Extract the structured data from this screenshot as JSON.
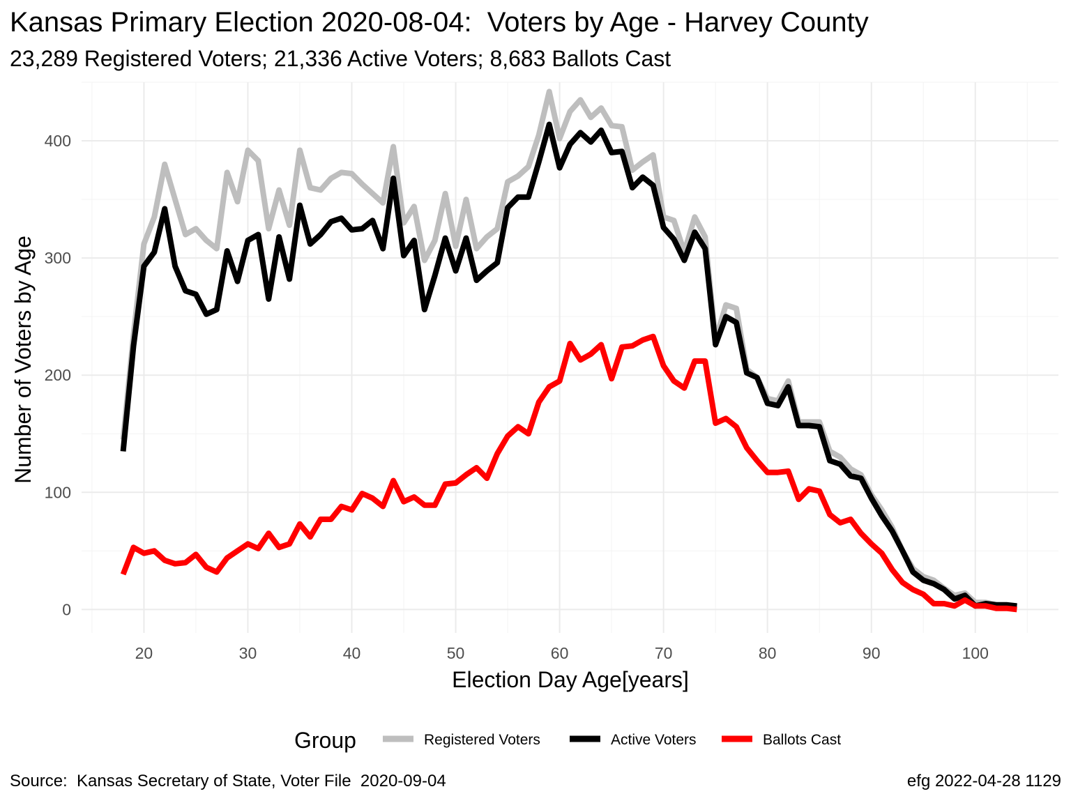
{
  "chart_data": {
    "type": "line",
    "title": "Kansas Primary Election 2020-08-04:  Voters by Age - Harvey County",
    "subtitle": "23,289 Registered Voters; 21,336 Active Voters; 8,683 Ballots Cast",
    "xlabel": "Election Day Age[years]",
    "ylabel": "Number of Voters by Age",
    "xlim": [
      14,
      108
    ],
    "ylim": [
      -20,
      450
    ],
    "xticks": [
      20,
      30,
      40,
      50,
      60,
      70,
      80,
      90,
      100
    ],
    "yticks": [
      0,
      100,
      200,
      300,
      400
    ],
    "grid": true,
    "legend": {
      "title": "Group",
      "position": "bottom"
    },
    "caption_left": "Source:  Kansas Secretary of State, Voter File  2020-09-04",
    "caption_right": "efg 2022-04-28 1129",
    "x": [
      18,
      19,
      20,
      21,
      22,
      23,
      24,
      25,
      26,
      27,
      28,
      29,
      30,
      31,
      32,
      33,
      34,
      35,
      36,
      37,
      38,
      39,
      40,
      41,
      42,
      43,
      44,
      45,
      46,
      47,
      48,
      49,
      50,
      51,
      52,
      53,
      54,
      55,
      56,
      57,
      58,
      59,
      60,
      61,
      62,
      63,
      64,
      65,
      66,
      67,
      68,
      69,
      70,
      71,
      72,
      73,
      74,
      75,
      76,
      77,
      78,
      79,
      80,
      81,
      82,
      83,
      84,
      85,
      86,
      87,
      88,
      89,
      90,
      91,
      92,
      93,
      94,
      95,
      96,
      97,
      98,
      99,
      100,
      101,
      102,
      103,
      104
    ],
    "series": [
      {
        "name": "Registered Voters",
        "color": "#bebebe",
        "values": [
          145,
          235,
          312,
          335,
          380,
          350,
          320,
          325,
          315,
          308,
          373,
          348,
          392,
          383,
          325,
          358,
          328,
          392,
          360,
          358,
          368,
          373,
          372,
          363,
          355,
          347,
          395,
          330,
          344,
          298,
          315,
          355,
          310,
          350,
          308,
          318,
          325,
          365,
          370,
          378,
          405,
          442,
          402,
          425,
          435,
          420,
          428,
          413,
          412,
          375,
          382,
          388,
          335,
          332,
          305,
          335,
          318,
          230,
          260,
          257,
          205,
          198,
          180,
          178,
          195,
          160,
          160,
          160,
          135,
          130,
          120,
          115,
          98,
          85,
          70,
          50,
          35,
          28,
          25,
          18,
          12,
          14,
          6,
          6,
          4,
          3,
          2
        ]
      },
      {
        "name": "Active Voters",
        "color": "#000000",
        "values": [
          135,
          225,
          293,
          305,
          342,
          293,
          272,
          269,
          252,
          256,
          306,
          280,
          315,
          320,
          265,
          318,
          282,
          345,
          312,
          320,
          331,
          334,
          324,
          325,
          332,
          308,
          368,
          302,
          315,
          256,
          285,
          317,
          289,
          317,
          281,
          289,
          296,
          343,
          352,
          352,
          382,
          414,
          377,
          397,
          407,
          399,
          409,
          390,
          391,
          360,
          369,
          362,
          326,
          316,
          298,
          322,
          308,
          226,
          250,
          245,
          202,
          198,
          176,
          174,
          190,
          157,
          157,
          156,
          127,
          124,
          114,
          112,
          95,
          80,
          67,
          50,
          32,
          25,
          22,
          17,
          9,
          12,
          3,
          5,
          4,
          4,
          3
        ]
      },
      {
        "name": "Ballots Cast",
        "color": "#ff0000",
        "values": [
          30,
          53,
          48,
          50,
          42,
          39,
          40,
          47,
          36,
          32,
          44,
          50,
          56,
          52,
          65,
          53,
          56,
          73,
          62,
          77,
          77,
          88,
          85,
          99,
          95,
          88,
          110,
          92,
          96,
          89,
          89,
          107,
          108,
          115,
          121,
          112,
          133,
          148,
          156,
          150,
          177,
          190,
          195,
          227,
          213,
          218,
          226,
          197,
          224,
          225,
          230,
          233,
          208,
          195,
          189,
          212,
          212,
          159,
          163,
          156,
          138,
          127,
          117,
          117,
          118,
          94,
          103,
          101,
          81,
          74,
          77,
          65,
          56,
          48,
          34,
          23,
          17,
          13,
          5,
          5,
          3,
          8,
          3,
          3,
          1,
          1,
          0
        ]
      }
    ]
  }
}
